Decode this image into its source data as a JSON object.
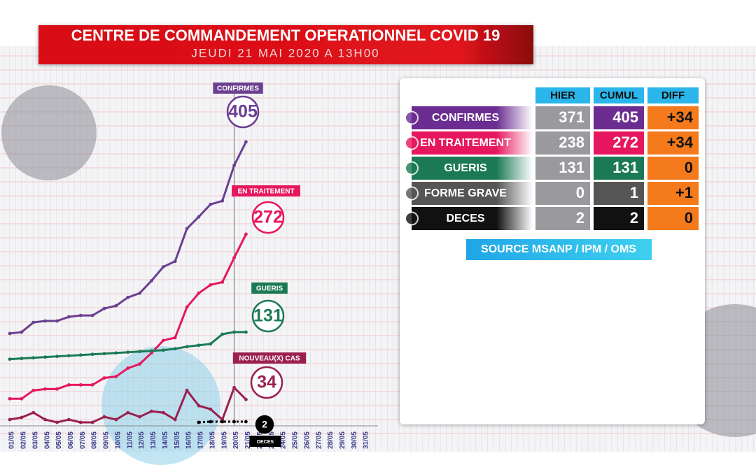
{
  "header": {
    "title": "CENTRE DE COMMANDEMENT OPERATIONNEL COVID 19",
    "subtitle": "JEUDI 21 MAI 2020 A 13H00"
  },
  "chart_data": {
    "type": "line",
    "categories": [
      "01/05",
      "02/05",
      "03/05",
      "04/05",
      "05/05",
      "06/05",
      "07/05",
      "08/05",
      "09/05",
      "10/05",
      "11/05",
      "12/05",
      "13/05",
      "14/05",
      "15/05",
      "16/05",
      "17/05",
      "18/05",
      "19/05",
      "20/05",
      "21/05",
      "22/05",
      "23/05",
      "24/05",
      "25/05",
      "26/05",
      "27/05",
      "28/05",
      "29/05",
      "30/05",
      "31/05"
    ],
    "ylim": [
      0,
      420
    ],
    "series": [
      {
        "name": "CONFIRMES",
        "color": "#6b3f92",
        "values": [
          129,
          131,
          145,
          147,
          147,
          153,
          155,
          155,
          165,
          169,
          181,
          187,
          205,
          225,
          233,
          280,
          297,
          315,
          320,
          371,
          405,
          null,
          null,
          null,
          null,
          null,
          null,
          null,
          null,
          null,
          null
        ]
      },
      {
        "name": "EN TRAITEMENT",
        "color": "#e6175e",
        "values": [
          35,
          35,
          47,
          49,
          49,
          55,
          55,
          55,
          65,
          67,
          79,
          85,
          101,
          119,
          123,
          167,
          187,
          199,
          203,
          238,
          272,
          null,
          null,
          null,
          null,
          null,
          null,
          null,
          null,
          null,
          null
        ]
      },
      {
        "name": "GUERIS",
        "color": "#1b7a55",
        "values": [
          92,
          93,
          94,
          95,
          96,
          97,
          98,
          99,
          100,
          101,
          102,
          103,
          104,
          105,
          107,
          110,
          112,
          114,
          128,
          131,
          131,
          null,
          null,
          null,
          null,
          null,
          null,
          null,
          null,
          null,
          null
        ]
      },
      {
        "name": "NOUVEAU(X) CAS",
        "color": "#9b2050",
        "values": [
          5,
          8,
          15,
          5,
          1,
          5,
          1,
          1,
          9,
          5,
          15,
          9,
          17,
          15,
          5,
          47,
          25,
          20,
          5,
          51,
          34,
          null,
          null,
          null,
          null,
          null,
          null,
          null,
          null,
          null,
          null
        ]
      },
      {
        "name": "DECES",
        "color": "#000000",
        "dashed": true,
        "values": [
          null,
          null,
          null,
          null,
          null,
          null,
          null,
          null,
          null,
          null,
          null,
          null,
          null,
          null,
          null,
          null,
          1,
          2,
          2,
          2,
          2,
          null,
          null,
          null,
          null,
          null,
          null,
          null,
          null,
          null,
          null
        ]
      }
    ]
  },
  "table": {
    "columns": [
      "HIER",
      "CUMUL",
      "DIFF"
    ],
    "rows": [
      {
        "label": "CONFIRMES",
        "color": "#6b2d91",
        "hier": 371,
        "cumul": 405,
        "diff": "+34"
      },
      {
        "label": "EN TRAITEMENT",
        "color": "#e6175e",
        "hier": 238,
        "cumul": 272,
        "diff": "+34"
      },
      {
        "label": "GUERIS",
        "color": "#1b7a55",
        "hier": 131,
        "cumul": 131,
        "diff": "0"
      },
      {
        "label": "FORME GRAVE",
        "color": "#555555",
        "hier": 0,
        "cumul": 1,
        "diff": "+1"
      },
      {
        "label": "DECES",
        "color": "#111111",
        "hier": 2,
        "cumul": 2,
        "diff": "0"
      }
    ]
  },
  "source": "SOURCE MSANP / IPM / OMS"
}
